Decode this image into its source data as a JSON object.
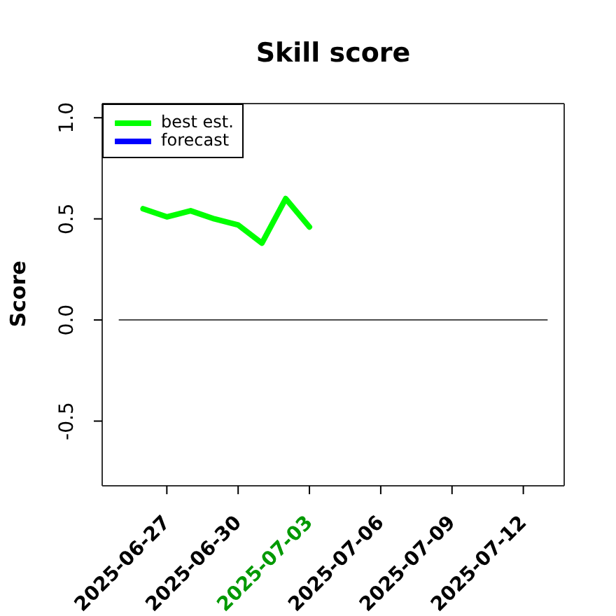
{
  "chart_data": {
    "type": "line",
    "title": "Skill score",
    "ylabel": "Score",
    "x": [
      "2025-06-26",
      "2025-06-27",
      "2025-06-28",
      "2025-06-29",
      "2025-06-30",
      "2025-07-01",
      "2025-07-02",
      "2025-07-03"
    ],
    "series": [
      {
        "name": "best est.",
        "color": "#00ff00",
        "values": [
          0.55,
          0.51,
          0.54,
          0.5,
          0.47,
          0.38,
          0.6,
          0.46
        ]
      },
      {
        "name": "forecast",
        "color": "#0000ff",
        "values": [
          null,
          null,
          null,
          null,
          null,
          null,
          null,
          null
        ]
      },
      {
        "type": "line",
        "color": "#4d4d4d",
        "x": [
          "2025-06-25",
          "2025-07-13"
        ],
        "values": [
          0,
          0
        ]
      }
    ],
    "xlim": [
      "2025-06-24T06:43",
      "2025-07-13T17:17"
    ],
    "xticks": [
      "2025-06-27",
      "2025-06-30",
      "2025-07-03",
      "2025-07-06",
      "2025-07-09",
      "2025-07-12"
    ],
    "ylim": [
      -0.82,
      1.07
    ],
    "yticks": [
      {
        "value": -0.5,
        "label": "-0.5"
      },
      {
        "value": 0,
        "label": "0.0"
      },
      0.5,
      {
        "value": 1,
        "label": "1.0"
      }
    ],
    "legend": "top left"
  }
}
